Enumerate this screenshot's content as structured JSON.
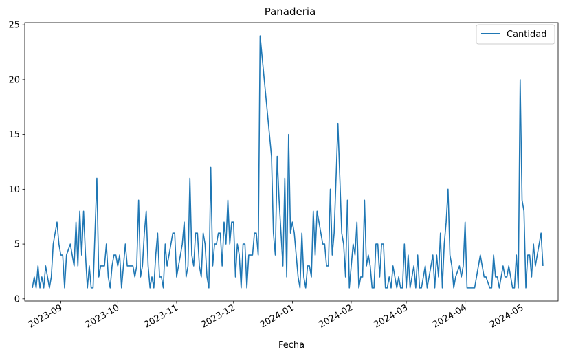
{
  "chart_data": {
    "type": "line",
    "title": "Panaderia",
    "xlabel": "Fecha",
    "ylabel": "",
    "ylim": [
      -0.2,
      25.2
    ],
    "xlim": [
      "2023-08-13",
      "2024-05-20"
    ],
    "yticks": [
      0,
      5,
      10,
      15,
      20,
      25
    ],
    "xticks": [
      {
        "date": "2023-09-01",
        "label": "2023-09"
      },
      {
        "date": "2023-10-01",
        "label": "2023-10"
      },
      {
        "date": "2023-11-01",
        "label": "2023-11"
      },
      {
        "date": "2023-12-01",
        "label": "2023-12"
      },
      {
        "date": "2024-01-01",
        "label": "2024-01"
      },
      {
        "date": "2024-02-01",
        "label": "2024-02"
      },
      {
        "date": "2024-03-01",
        "label": "2024-03"
      },
      {
        "date": "2024-04-01",
        "label": "2024-04"
      },
      {
        "date": "2024-05-01",
        "label": "2024-05"
      }
    ],
    "grid": false,
    "legend_position": "top-right",
    "series": [
      {
        "name": "Cantidad",
        "color": "#1f77b4",
        "points": [
          [
            "2023-08-17",
            1
          ],
          [
            "2023-08-18",
            2
          ],
          [
            "2023-08-19",
            1
          ],
          [
            "2023-08-20",
            3
          ],
          [
            "2023-08-21",
            1
          ],
          [
            "2023-08-22",
            2
          ],
          [
            "2023-08-23",
            1
          ],
          [
            "2023-08-24",
            3
          ],
          [
            "2023-08-25",
            2
          ],
          [
            "2023-08-26",
            1
          ],
          [
            "2023-08-27",
            2
          ],
          [
            "2023-08-28",
            5
          ],
          [
            "2023-08-30",
            7
          ],
          [
            "2023-08-31",
            5
          ],
          [
            "2023-09-01",
            4
          ],
          [
            "2023-09-02",
            4
          ],
          [
            "2023-09-03",
            1
          ],
          [
            "2023-09-04",
            4
          ],
          [
            "2023-09-06",
            5
          ],
          [
            "2023-09-07",
            4
          ],
          [
            "2023-09-08",
            3
          ],
          [
            "2023-09-09",
            7
          ],
          [
            "2023-09-10",
            3
          ],
          [
            "2023-09-11",
            8
          ],
          [
            "2023-09-12",
            4
          ],
          [
            "2023-09-13",
            8
          ],
          [
            "2023-09-14",
            4
          ],
          [
            "2023-09-15",
            1
          ],
          [
            "2023-09-16",
            3
          ],
          [
            "2023-09-17",
            1
          ],
          [
            "2023-09-18",
            1
          ],
          [
            "2023-09-20",
            11
          ],
          [
            "2023-09-21",
            2
          ],
          [
            "2023-09-22",
            3
          ],
          [
            "2023-09-23",
            3
          ],
          [
            "2023-09-24",
            3
          ],
          [
            "2023-09-25",
            5
          ],
          [
            "2023-09-26",
            2
          ],
          [
            "2023-09-27",
            1
          ],
          [
            "2023-09-28",
            3
          ],
          [
            "2023-09-29",
            4
          ],
          [
            "2023-09-30",
            4
          ],
          [
            "2023-10-01",
            3
          ],
          [
            "2023-10-02",
            4
          ],
          [
            "2023-10-03",
            1
          ],
          [
            "2023-10-04",
            3
          ],
          [
            "2023-10-05",
            5
          ],
          [
            "2023-10-06",
            3
          ],
          [
            "2023-10-07",
            3
          ],
          [
            "2023-10-08",
            3
          ],
          [
            "2023-10-09",
            3
          ],
          [
            "2023-10-10",
            2
          ],
          [
            "2023-10-11",
            3
          ],
          [
            "2023-10-12",
            9
          ],
          [
            "2023-10-13",
            2
          ],
          [
            "2023-10-14",
            3
          ],
          [
            "2023-10-15",
            6
          ],
          [
            "2023-10-16",
            8
          ],
          [
            "2023-10-17",
            3
          ],
          [
            "2023-10-18",
            1
          ],
          [
            "2023-10-19",
            2
          ],
          [
            "2023-10-20",
            1
          ],
          [
            "2023-10-21",
            4
          ],
          [
            "2023-10-22",
            6
          ],
          [
            "2023-10-23",
            2
          ],
          [
            "2023-10-24",
            2
          ],
          [
            "2023-10-25",
            1
          ],
          [
            "2023-10-26",
            5
          ],
          [
            "2023-10-27",
            3
          ],
          [
            "2023-10-29",
            5
          ],
          [
            "2023-10-30",
            6
          ],
          [
            "2023-10-31",
            6
          ],
          [
            "2023-11-01",
            2
          ],
          [
            "2023-11-02",
            3
          ],
          [
            "2023-11-04",
            5
          ],
          [
            "2023-11-05",
            7
          ],
          [
            "2023-11-06",
            2
          ],
          [
            "2023-11-07",
            3
          ],
          [
            "2023-11-08",
            11
          ],
          [
            "2023-11-09",
            4
          ],
          [
            "2023-11-10",
            3
          ],
          [
            "2023-11-11",
            6
          ],
          [
            "2023-11-12",
            6
          ],
          [
            "2023-11-13",
            3
          ],
          [
            "2023-11-14",
            2
          ],
          [
            "2023-11-15",
            6
          ],
          [
            "2023-11-16",
            5
          ],
          [
            "2023-11-17",
            2
          ],
          [
            "2023-11-18",
            1
          ],
          [
            "2023-11-19",
            12
          ],
          [
            "2023-11-20",
            3
          ],
          [
            "2023-11-21",
            5
          ],
          [
            "2023-11-22",
            5
          ],
          [
            "2023-11-23",
            6
          ],
          [
            "2023-11-24",
            6
          ],
          [
            "2023-11-25",
            3
          ],
          [
            "2023-11-26",
            7
          ],
          [
            "2023-11-27",
            5
          ],
          [
            "2023-11-28",
            9
          ],
          [
            "2023-11-29",
            5
          ],
          [
            "2023-11-30",
            7
          ],
          [
            "2023-12-01",
            7
          ],
          [
            "2023-12-02",
            2
          ],
          [
            "2023-12-03",
            5
          ],
          [
            "2023-12-04",
            4
          ],
          [
            "2023-12-05",
            1
          ],
          [
            "2023-12-06",
            5
          ],
          [
            "2023-12-07",
            5
          ],
          [
            "2023-12-08",
            1
          ],
          [
            "2023-12-09",
            4
          ],
          [
            "2023-12-10",
            4
          ],
          [
            "2023-12-11",
            4
          ],
          [
            "2023-12-12",
            6
          ],
          [
            "2023-12-13",
            6
          ],
          [
            "2023-12-14",
            4
          ],
          [
            "2023-12-15",
            24
          ],
          [
            "2023-12-21",
            13
          ],
          [
            "2023-12-22",
            6
          ],
          [
            "2023-12-23",
            4
          ],
          [
            "2023-12-24",
            13
          ],
          [
            "2023-12-25",
            9
          ],
          [
            "2023-12-27",
            3
          ],
          [
            "2023-12-28",
            11
          ],
          [
            "2023-12-29",
            2
          ],
          [
            "2023-12-30",
            15
          ],
          [
            "2023-12-31",
            6
          ],
          [
            "2024-01-01",
            7
          ],
          [
            "2024-01-02",
            6
          ],
          [
            "2024-01-03",
            4
          ],
          [
            "2024-01-04",
            2
          ],
          [
            "2024-01-05",
            1
          ],
          [
            "2024-01-06",
            6
          ],
          [
            "2024-01-07",
            2
          ],
          [
            "2024-01-08",
            1
          ],
          [
            "2024-01-09",
            3
          ],
          [
            "2024-01-10",
            3
          ],
          [
            "2024-01-11",
            2
          ],
          [
            "2024-01-12",
            8
          ],
          [
            "2024-01-13",
            4
          ],
          [
            "2024-01-14",
            8
          ],
          [
            "2024-01-17",
            5
          ],
          [
            "2024-01-18",
            5
          ],
          [
            "2024-01-19",
            3
          ],
          [
            "2024-01-20",
            3
          ],
          [
            "2024-01-21",
            10
          ],
          [
            "2024-01-22",
            4
          ],
          [
            "2024-01-23",
            6
          ],
          [
            "2024-01-25",
            16
          ],
          [
            "2024-01-27",
            6
          ],
          [
            "2024-01-28",
            5
          ],
          [
            "2024-01-29",
            2
          ],
          [
            "2024-01-30",
            9
          ],
          [
            "2024-01-31",
            1
          ],
          [
            "2024-02-02",
            5
          ],
          [
            "2024-02-03",
            4
          ],
          [
            "2024-02-04",
            7
          ],
          [
            "2024-02-05",
            1
          ],
          [
            "2024-02-06",
            2
          ],
          [
            "2024-02-07",
            2
          ],
          [
            "2024-02-08",
            9
          ],
          [
            "2024-02-09",
            3
          ],
          [
            "2024-02-10",
            4
          ],
          [
            "2024-02-11",
            3
          ],
          [
            "2024-02-12",
            1
          ],
          [
            "2024-02-13",
            1
          ],
          [
            "2024-02-14",
            5
          ],
          [
            "2024-02-15",
            5
          ],
          [
            "2024-02-16",
            2
          ],
          [
            "2024-02-17",
            5
          ],
          [
            "2024-02-18",
            5
          ],
          [
            "2024-02-19",
            1
          ],
          [
            "2024-02-20",
            1
          ],
          [
            "2024-02-21",
            2
          ],
          [
            "2024-02-22",
            1
          ],
          [
            "2024-02-23",
            3
          ],
          [
            "2024-02-24",
            2
          ],
          [
            "2024-02-25",
            1
          ],
          [
            "2024-02-26",
            2
          ],
          [
            "2024-02-27",
            1
          ],
          [
            "2024-02-28",
            1
          ],
          [
            "2024-02-29",
            5
          ],
          [
            "2024-03-01",
            1
          ],
          [
            "2024-03-02",
            4
          ],
          [
            "2024-03-03",
            1
          ],
          [
            "2024-03-04",
            2
          ],
          [
            "2024-03-05",
            3
          ],
          [
            "2024-03-06",
            1
          ],
          [
            "2024-03-07",
            4
          ],
          [
            "2024-03-08",
            1
          ],
          [
            "2024-03-09",
            1
          ],
          [
            "2024-03-10",
            2
          ],
          [
            "2024-03-11",
            3
          ],
          [
            "2024-03-12",
            1
          ],
          [
            "2024-03-13",
            2
          ],
          [
            "2024-03-14",
            3
          ],
          [
            "2024-03-15",
            4
          ],
          [
            "2024-03-16",
            1
          ],
          [
            "2024-03-17",
            4
          ],
          [
            "2024-03-18",
            2
          ],
          [
            "2024-03-19",
            6
          ],
          [
            "2024-03-20",
            1
          ],
          [
            "2024-03-21",
            5
          ],
          [
            "2024-03-22",
            7
          ],
          [
            "2024-03-23",
            10
          ],
          [
            "2024-03-24",
            4
          ],
          [
            "2024-03-25",
            3
          ],
          [
            "2024-03-26",
            1
          ],
          [
            "2024-03-27",
            2
          ],
          [
            "2024-03-29",
            3
          ],
          [
            "2024-03-30",
            2
          ],
          [
            "2024-03-31",
            3
          ],
          [
            "2024-04-01",
            7
          ],
          [
            "2024-04-02",
            1
          ],
          [
            "2024-04-06",
            1
          ],
          [
            "2024-04-09",
            4
          ],
          [
            "2024-04-11",
            2
          ],
          [
            "2024-04-12",
            2
          ],
          [
            "2024-04-14",
            1
          ],
          [
            "2024-04-15",
            1
          ],
          [
            "2024-04-16",
            4
          ],
          [
            "2024-04-17",
            2
          ],
          [
            "2024-04-18",
            2
          ],
          [
            "2024-04-19",
            1
          ],
          [
            "2024-04-20",
            2
          ],
          [
            "2024-04-21",
            3
          ],
          [
            "2024-04-22",
            2
          ],
          [
            "2024-04-23",
            2
          ],
          [
            "2024-04-24",
            3
          ],
          [
            "2024-04-25",
            2
          ],
          [
            "2024-04-26",
            1
          ],
          [
            "2024-04-27",
            1
          ],
          [
            "2024-04-28",
            4
          ],
          [
            "2024-04-29",
            1
          ],
          [
            "2024-04-30",
            20
          ],
          [
            "2024-05-01",
            9
          ],
          [
            "2024-05-02",
            8
          ],
          [
            "2024-05-03",
            1
          ],
          [
            "2024-05-04",
            4
          ],
          [
            "2024-05-05",
            4
          ],
          [
            "2024-05-06",
            2
          ],
          [
            "2024-05-07",
            5
          ],
          [
            "2024-05-08",
            3
          ],
          [
            "2024-05-09",
            4
          ],
          [
            "2024-05-10",
            5
          ],
          [
            "2024-05-11",
            6
          ],
          [
            "2024-05-12",
            3
          ]
        ]
      }
    ]
  }
}
